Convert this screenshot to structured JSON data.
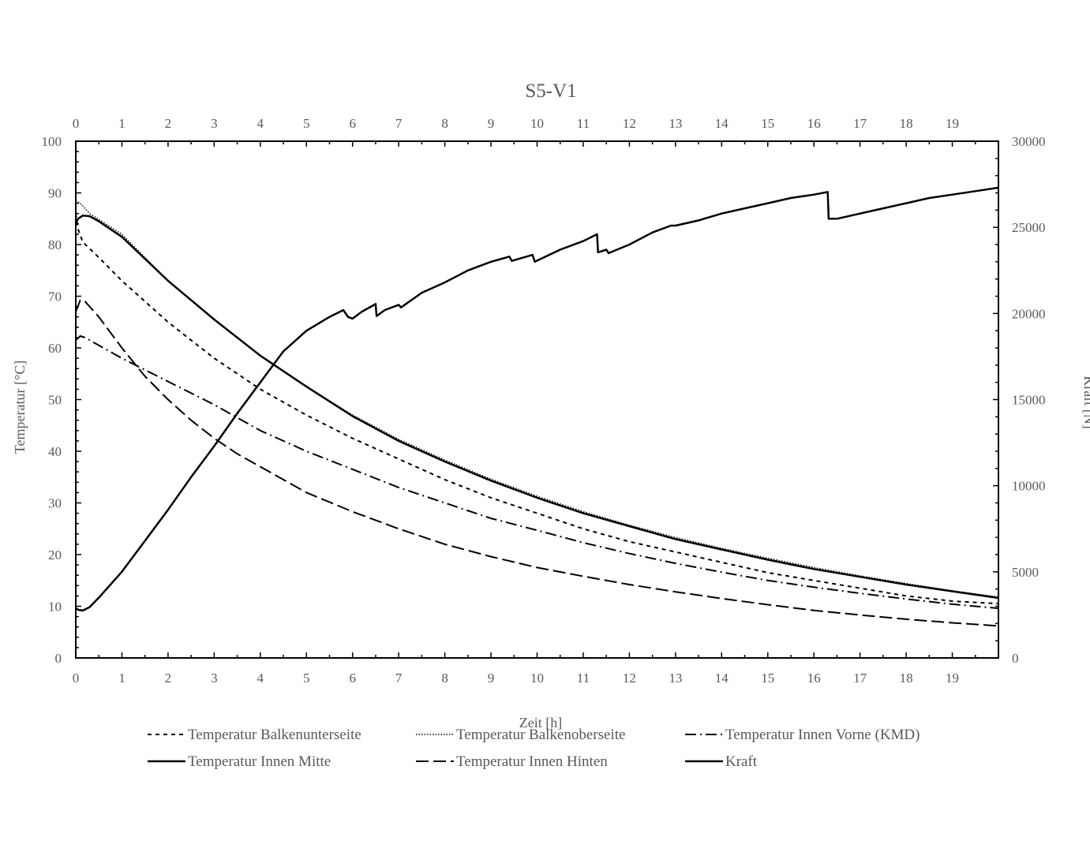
{
  "chart_data": {
    "type": "line",
    "title": "S5-V1",
    "xlabel": "Zeit [h]",
    "ylabel": "Temperatur [°C]",
    "y2label": "Kraft [N]",
    "xlim": [
      0,
      20
    ],
    "ylim": [
      0,
      100
    ],
    "y2lim": [
      0,
      30000
    ],
    "x_ticks": [
      "0",
      "1",
      "2",
      "3",
      "4",
      "5",
      "6",
      "7",
      "8",
      "9",
      "10",
      "11",
      "12",
      "13",
      "14",
      "15",
      "16",
      "17",
      "18",
      "19"
    ],
    "y_ticks": [
      "0",
      "10",
      "20",
      "30",
      "40",
      "50",
      "60",
      "70",
      "80",
      "90",
      "100"
    ],
    "y2_ticks": [
      "0",
      "5000",
      "10000",
      "15000",
      "20000",
      "25000",
      "30000"
    ],
    "grid": false,
    "legend_position": "bottom",
    "series": [
      {
        "name": "Temperatur Balkenunterseite",
        "axis": "left",
        "dash": "5,5",
        "width": 2,
        "points": [
          [
            0,
            86
          ],
          [
            0.05,
            83
          ],
          [
            0.15,
            80.5
          ],
          [
            0.5,
            77.5
          ],
          [
            1,
            73
          ],
          [
            1.5,
            69
          ],
          [
            2,
            65
          ],
          [
            2.5,
            61.5
          ],
          [
            3,
            58
          ],
          [
            3.5,
            55
          ],
          [
            4,
            52
          ],
          [
            5,
            47
          ],
          [
            6,
            42.5
          ],
          [
            7,
            38.5
          ],
          [
            8,
            34.5
          ],
          [
            9,
            31
          ],
          [
            10,
            28
          ],
          [
            11,
            25
          ],
          [
            12,
            22.5
          ],
          [
            13,
            20.5
          ],
          [
            14,
            18.5
          ],
          [
            15,
            16.5
          ],
          [
            16,
            15
          ],
          [
            17,
            13.5
          ],
          [
            18,
            12
          ],
          [
            19,
            11
          ],
          [
            20,
            10.5
          ]
        ]
      },
      {
        "name": "Temperatur Balkenoberseite",
        "axis": "left",
        "dash": "1.5,2",
        "width": 1.5,
        "points": [
          [
            0,
            88.5
          ],
          [
            0.1,
            88
          ],
          [
            0.3,
            86
          ],
          [
            1,
            82
          ],
          [
            2,
            73
          ],
          [
            3,
            65.5
          ],
          [
            4,
            58.5
          ],
          [
            5,
            52.5
          ],
          [
            6,
            47
          ],
          [
            7,
            42.3
          ],
          [
            8,
            38.3
          ],
          [
            9,
            34.6
          ],
          [
            10,
            31.3
          ],
          [
            11,
            28.3
          ],
          [
            12,
            25.7
          ],
          [
            13,
            23.3
          ],
          [
            14,
            21.2
          ],
          [
            15,
            19.3
          ],
          [
            16,
            17.5
          ],
          [
            17,
            15.9
          ],
          [
            18,
            14.4
          ],
          [
            19,
            13
          ],
          [
            20,
            11.8
          ]
        ]
      },
      {
        "name": "Temperatur Innen Vorne (KMD)",
        "axis": "left",
        "dash": "14,5,2,5",
        "width": 2,
        "points": [
          [
            0,
            61.5
          ],
          [
            0.1,
            62.3
          ],
          [
            0.2,
            62
          ],
          [
            0.5,
            60.5
          ],
          [
            1,
            58
          ],
          [
            2,
            53.5
          ],
          [
            3,
            49
          ],
          [
            4,
            44
          ],
          [
            5,
            40
          ],
          [
            6,
            36.5
          ],
          [
            7,
            33
          ],
          [
            8,
            30
          ],
          [
            9,
            27
          ],
          [
            10,
            24.7
          ],
          [
            11,
            22.3
          ],
          [
            12,
            20.2
          ],
          [
            13,
            18.3
          ],
          [
            14,
            16.6
          ],
          [
            15,
            15
          ],
          [
            16,
            13.7
          ],
          [
            17,
            12.5
          ],
          [
            18,
            11.4
          ],
          [
            19,
            10.4
          ],
          [
            20,
            9.6
          ]
        ]
      },
      {
        "name": "Temperatur Innen Mitte",
        "axis": "left",
        "dash": "",
        "width": 2.5,
        "points": [
          [
            0,
            84
          ],
          [
            0.05,
            85
          ],
          [
            0.15,
            85.6
          ],
          [
            0.3,
            85.5
          ],
          [
            0.5,
            84.5
          ],
          [
            1,
            81.5
          ],
          [
            2,
            73
          ],
          [
            3,
            65.5
          ],
          [
            4,
            58.5
          ],
          [
            5,
            52.5
          ],
          [
            6,
            46.8
          ],
          [
            7,
            42
          ],
          [
            8,
            38
          ],
          [
            9,
            34.3
          ],
          [
            10,
            31
          ],
          [
            11,
            28
          ],
          [
            12,
            25.5
          ],
          [
            13,
            23
          ],
          [
            14,
            21
          ],
          [
            15,
            19
          ],
          [
            16,
            17.2
          ],
          [
            17,
            15.7
          ],
          [
            18,
            14.2
          ],
          [
            19,
            12.9
          ],
          [
            20,
            11.6
          ]
        ]
      },
      {
        "name": "Temperatur Innen Hinten",
        "axis": "left",
        "dash": "16,6",
        "width": 2,
        "points": [
          [
            0,
            67
          ],
          [
            0.1,
            69.3
          ],
          [
            0.2,
            69
          ],
          [
            0.5,
            66
          ],
          [
            1,
            60
          ],
          [
            1.5,
            54.5
          ],
          [
            2,
            50
          ],
          [
            2.5,
            46
          ],
          [
            3,
            42.5
          ],
          [
            3.5,
            39.5
          ],
          [
            4,
            37
          ],
          [
            5,
            32
          ],
          [
            6,
            28.3
          ],
          [
            7,
            25
          ],
          [
            8,
            22
          ],
          [
            9,
            19.6
          ],
          [
            10,
            17.5
          ],
          [
            11,
            15.8
          ],
          [
            12,
            14.2
          ],
          [
            13,
            12.8
          ],
          [
            14,
            11.5
          ],
          [
            15,
            10.3
          ],
          [
            16,
            9.2
          ],
          [
            17,
            8.3
          ],
          [
            18,
            7.5
          ],
          [
            19,
            6.8
          ],
          [
            20,
            6.2
          ]
        ]
      },
      {
        "name": "Kraft",
        "axis": "right",
        "dash": "",
        "width": 2.5,
        "points": [
          [
            0,
            2900
          ],
          [
            0.05,
            2800
          ],
          [
            0.15,
            2750
          ],
          [
            0.3,
            2950
          ],
          [
            0.5,
            3500
          ],
          [
            1,
            5000
          ],
          [
            1.5,
            6800
          ],
          [
            2,
            8600
          ],
          [
            2.5,
            10500
          ],
          [
            3,
            12300
          ],
          [
            3.5,
            14200
          ],
          [
            4,
            16000
          ],
          [
            4.5,
            17800
          ],
          [
            5,
            19000
          ],
          [
            5.5,
            19800
          ],
          [
            5.8,
            20200
          ],
          [
            5.9,
            19800
          ],
          [
            6,
            19700
          ],
          [
            6.2,
            20100
          ],
          [
            6.4,
            20400
          ],
          [
            6.5,
            20550
          ],
          [
            6.52,
            19850
          ],
          [
            6.7,
            20200
          ],
          [
            7,
            20500
          ],
          [
            7.05,
            20350
          ],
          [
            7.5,
            21200
          ],
          [
            8,
            21800
          ],
          [
            8.5,
            22500
          ],
          [
            9,
            23000
          ],
          [
            9.4,
            23300
          ],
          [
            9.45,
            23050
          ],
          [
            9.9,
            23400
          ],
          [
            9.95,
            23000
          ],
          [
            10.5,
            23700
          ],
          [
            11,
            24200
          ],
          [
            11.3,
            24600
          ],
          [
            11.32,
            23550
          ],
          [
            11.5,
            23700
          ],
          [
            11.55,
            23500
          ],
          [
            12,
            24000
          ],
          [
            12.5,
            24700
          ],
          [
            12.9,
            25100
          ],
          [
            13,
            25100
          ],
          [
            13.5,
            25400
          ],
          [
            14,
            25800
          ],
          [
            14.5,
            26100
          ],
          [
            15,
            26400
          ],
          [
            15.5,
            26700
          ],
          [
            16,
            26900
          ],
          [
            16.3,
            27050
          ],
          [
            16.32,
            25500
          ],
          [
            16.5,
            25500
          ],
          [
            17,
            25800
          ],
          [
            17.5,
            26100
          ],
          [
            18,
            26400
          ],
          [
            18.5,
            26700
          ],
          [
            19,
            26900
          ],
          [
            19.5,
            27100
          ],
          [
            20,
            27300
          ]
        ]
      }
    ]
  }
}
